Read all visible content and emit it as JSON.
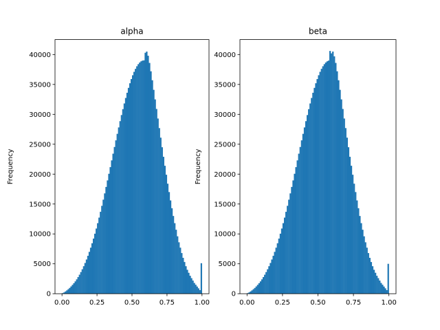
{
  "chart_data": [
    {
      "type": "bar",
      "title": "alpha",
      "xlabel": "",
      "ylabel": "Frequency",
      "xlim": [
        -0.05,
        1.05
      ],
      "ylim": [
        0,
        42500
      ],
      "xticks": [
        "0.00",
        "0.25",
        "0.50",
        "0.75",
        "1.00"
      ],
      "yticks": [
        "0",
        "5000",
        "10000",
        "15000",
        "20000",
        "25000",
        "30000",
        "35000",
        "40000"
      ],
      "grid": false,
      "bar_color": "#1f77b4",
      "bin_edges": [
        0.0,
        1.0
      ],
      "values": [
        100,
        220,
        380,
        560,
        760,
        970,
        1220,
        1480,
        1760,
        2060,
        2400,
        2780,
        3180,
        3620,
        4090,
        4600,
        5140,
        5720,
        6340,
        7000,
        7700,
        8440,
        9220,
        10040,
        10900,
        11800,
        12730,
        13700,
        14700,
        15730,
        16780,
        17860,
        18950,
        20060,
        21170,
        22300,
        23420,
        24540,
        25650,
        26740,
        27810,
        28860,
        29880,
        30870,
        31820,
        32740,
        33610,
        34430,
        35200,
        35900,
        36540,
        37110,
        37610,
        38040,
        38390,
        38670,
        38870,
        38990,
        39030,
        40300,
        40500,
        39800,
        38600,
        37200,
        35700,
        34100,
        32500,
        30900,
        29300,
        27700,
        26100,
        24500,
        22900,
        21400,
        19900,
        18400,
        17000,
        15600,
        14300,
        13000,
        11800,
        10700,
        9600,
        8600,
        7700,
        6800,
        6000,
        5300,
        4600,
        4000,
        3500,
        3000,
        2600,
        2200,
        1800,
        1500,
        1200,
        900,
        600,
        5100
      ]
    },
    {
      "type": "bar",
      "title": "beta",
      "xlabel": "",
      "ylabel": "Frequency",
      "xlim": [
        -0.05,
        1.05
      ],
      "ylim": [
        0,
        42500
      ],
      "xticks": [
        "0.00",
        "0.25",
        "0.50",
        "0.75",
        "1.00"
      ],
      "yticks": [
        "0",
        "5000",
        "10000",
        "15000",
        "20000",
        "25000",
        "30000",
        "35000",
        "40000"
      ],
      "grid": false,
      "bar_color": "#1f77b4",
      "bin_edges": [
        0.0,
        1.0
      ],
      "values": [
        100,
        220,
        380,
        560,
        760,
        970,
        1220,
        1480,
        1760,
        2060,
        2400,
        2780,
        3180,
        3620,
        4090,
        4600,
        5140,
        5720,
        6340,
        7000,
        7700,
        8440,
        9220,
        10040,
        10900,
        11800,
        12730,
        13700,
        14700,
        15730,
        16780,
        17860,
        18950,
        20060,
        21170,
        22300,
        23420,
        24540,
        25650,
        26740,
        27810,
        28860,
        29880,
        30870,
        31820,
        32740,
        33610,
        34430,
        35200,
        35900,
        36540,
        37110,
        37610,
        38040,
        38390,
        38670,
        38870,
        38990,
        40600,
        40200,
        40500,
        39700,
        38600,
        37200,
        35700,
        34100,
        32500,
        30900,
        29300,
        27700,
        26100,
        24500,
        22900,
        21400,
        19900,
        18400,
        17000,
        15600,
        14300,
        13000,
        11800,
        10700,
        9600,
        8600,
        7700,
        6800,
        6000,
        5300,
        4600,
        4000,
        3500,
        3000,
        2600,
        2200,
        1800,
        1500,
        1200,
        900,
        600,
        5000
      ]
    }
  ]
}
